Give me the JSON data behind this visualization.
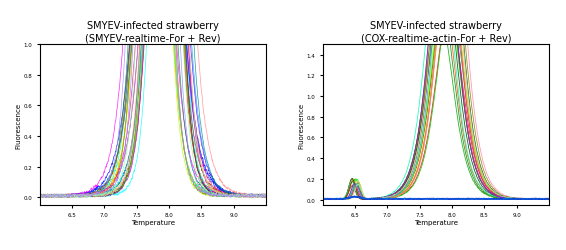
{
  "title1": "SMYEV-infected strawberry\n(SMYEV-realtime-For + Rev)",
  "title2": "SMYEV-infected strawberry\n(COX-realtime-actin-For + Rev)",
  "xlabel": "Temperature",
  "ylabel": "Fluorescence",
  "xmin": 6.0,
  "xmax": 9.5,
  "colors": [
    "#FF0000",
    "#FF4400",
    "#FF8800",
    "#FFAA00",
    "#FFDD00",
    "#AAFF00",
    "#00FF00",
    "#00FFAA",
    "#00FFFF",
    "#00AAFF",
    "#0055FF",
    "#0000FF",
    "#5500FF",
    "#AA00FF",
    "#FF00FF",
    "#FF0088",
    "#884400",
    "#008844",
    "#448800",
    "#888800",
    "#008888",
    "#880088",
    "#FF8888",
    "#88FF88",
    "#8888FF",
    "#FFAA88",
    "#88FFAA",
    "#AA88FF",
    "#FF88AA",
    "#AAFFAA"
  ],
  "bg_color": "#ffffff",
  "plot_bg": "#ffffff",
  "border_color": "#000000"
}
